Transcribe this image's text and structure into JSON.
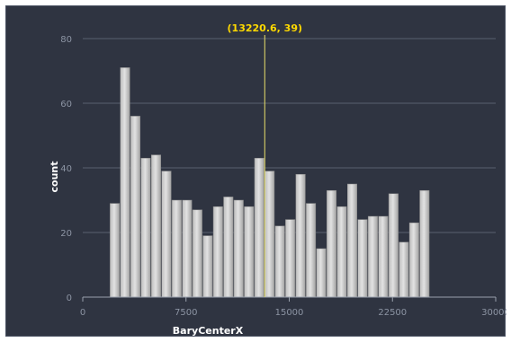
{
  "chart_data": {
    "type": "bar",
    "xlabel": "BaryCenterX",
    "ylabel": "count",
    "xlim": [
      0,
      30000
    ],
    "ylim": [
      0,
      80
    ],
    "x_ticks": [
      0,
      7500,
      15000,
      22500,
      30000
    ],
    "y_ticks": [
      0,
      20,
      40,
      60,
      80
    ],
    "grid": true,
    "bin_start": 1950,
    "bin_width": 750,
    "values": [
      29,
      71,
      56,
      43,
      44,
      39,
      30,
      30,
      27,
      19,
      28,
      31,
      30,
      28,
      43,
      39,
      22,
      24,
      38,
      29,
      15,
      33,
      28,
      35,
      24,
      25,
      25,
      32,
      17,
      23,
      33
    ],
    "cursor": {
      "x": 13220.6,
      "y": 39,
      "label": "(13220.6, 39)"
    },
    "colors": {
      "background": "#2f3441",
      "grid": "#5a6170",
      "bar_light": "#dcdcdc",
      "bar_dark": "#a9a9a9",
      "cursor": "#e8e06a",
      "cursor_text": "#ffd900"
    }
  }
}
